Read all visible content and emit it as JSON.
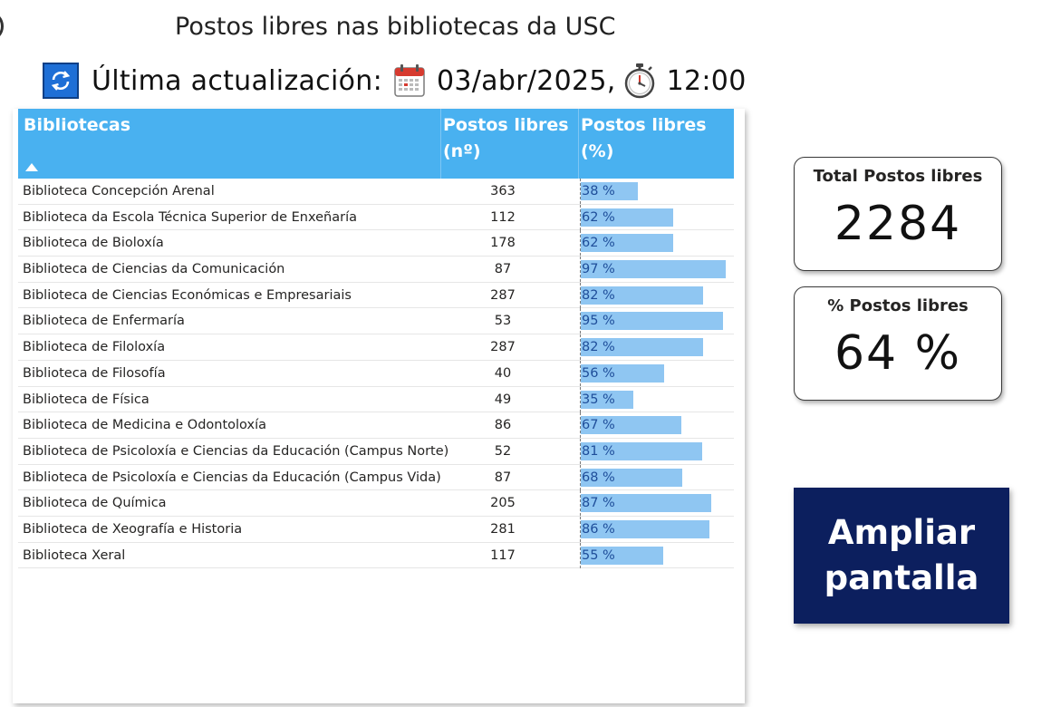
{
  "page_title": "Postos libres nas bibliotecas da USC",
  "update": {
    "label": "Última actualización:",
    "date": "03/abr/2025,",
    "time": "12:00"
  },
  "table": {
    "headers": {
      "name": "Bibliotecas",
      "count": "Postos libres (nº)",
      "pct": "Postos libres (%)"
    },
    "rows": [
      {
        "name": "Biblioteca Concepción Arenal",
        "count": "363",
        "pct_label": "38 %",
        "pct": 38
      },
      {
        "name": "Biblioteca da Escola Técnica Superior de Enxeñaría",
        "count": "112",
        "pct_label": "62 %",
        "pct": 62
      },
      {
        "name": "Biblioteca de Bioloxía",
        "count": "178",
        "pct_label": "62 %",
        "pct": 62
      },
      {
        "name": "Biblioteca de Ciencias da Comunicación",
        "count": "87",
        "pct_label": "97 %",
        "pct": 97
      },
      {
        "name": "Biblioteca de Ciencias Económicas e Empresariais",
        "count": "287",
        "pct_label": "82 %",
        "pct": 82
      },
      {
        "name": "Biblioteca de Enfermaría",
        "count": "53",
        "pct_label": "95 %",
        "pct": 95
      },
      {
        "name": "Biblioteca de Filoloxía",
        "count": "287",
        "pct_label": "82 %",
        "pct": 82
      },
      {
        "name": "Biblioteca de Filosofía",
        "count": "40",
        "pct_label": "56 %",
        "pct": 56
      },
      {
        "name": "Biblioteca de Física",
        "count": "49",
        "pct_label": "35 %",
        "pct": 35
      },
      {
        "name": "Biblioteca de Medicina e Odontoloxía",
        "count": "86",
        "pct_label": "67 %",
        "pct": 67
      },
      {
        "name": "Biblioteca de Psicoloxía e Ciencias da Educación (Campus Norte)",
        "count": "52",
        "pct_label": "81 %",
        "pct": 81
      },
      {
        "name": "Biblioteca de Psicoloxía e Ciencias da Educación (Campus Vida)",
        "count": "87",
        "pct_label": "68 %",
        "pct": 68
      },
      {
        "name": "Biblioteca de Química",
        "count": "205",
        "pct_label": "87 %",
        "pct": 87
      },
      {
        "name": "Biblioteca de Xeografía e Historia",
        "count": "281",
        "pct_label": "86 %",
        "pct": 86
      },
      {
        "name": "Biblioteca Xeral",
        "count": "117",
        "pct_label": "55 %",
        "pct": 55
      }
    ]
  },
  "kpis": {
    "total_label": "Total Postos libres",
    "total_value": "2284",
    "pct_label": "% Postos libres",
    "pct_value": "64 %"
  },
  "expand_button": {
    "line1": "Ampliar",
    "line2": "pantalla"
  },
  "colors": {
    "header_bg": "#49b1f0",
    "bar": "#8fc6f2",
    "button_bg": "#0c1f5e"
  }
}
